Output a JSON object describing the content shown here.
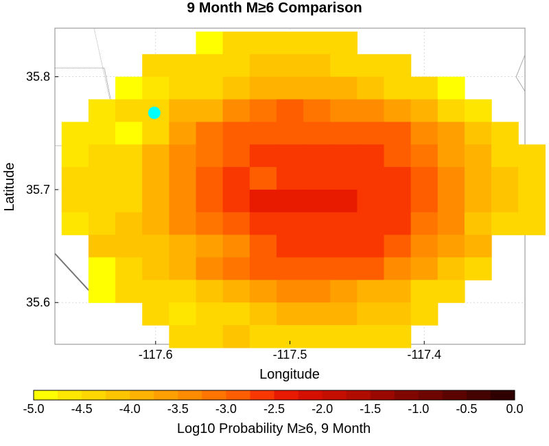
{
  "chart_data": {
    "type": "heatmap",
    "title": "9 Month M≥6 Comparison",
    "xlabel": "Longitude",
    "ylabel": "Latitude",
    "xlim": [
      -117.675,
      -117.325
    ],
    "ylim": [
      35.563,
      35.843
    ],
    "x_ticks": [
      {
        "value": -117.6,
        "label": "-117.6"
      },
      {
        "value": -117.5,
        "label": "-117.5"
      },
      {
        "value": -117.4,
        "label": "-117.4"
      }
    ],
    "y_ticks": [
      {
        "value": 35.6,
        "label": "35.6"
      },
      {
        "value": 35.7,
        "label": "35.7"
      },
      {
        "value": 35.8,
        "label": "35.8"
      }
    ],
    "grid": true,
    "cell_rows": [
      {
        "lat": 35.83,
        "lon_start": -117.57,
        "values": [
          -4.8,
          -4.5,
          -4.4,
          -4.4,
          -4.4,
          -4.5
        ]
      },
      {
        "lat": 35.81,
        "lon_start": -117.61,
        "values": [
          -4.5,
          -4.5,
          -4.3,
          -4.3,
          -4.1,
          -4.1,
          -4.1,
          -4.3,
          -4.4,
          -4.4
        ]
      },
      {
        "lat": 35.79,
        "lon_start": -117.63,
        "values": [
          -4.9,
          -4.6,
          -4.3,
          -4.3,
          -4.1,
          -3.9,
          -3.9,
          -3.9,
          -3.9,
          -4.1,
          -4.3,
          -4.4,
          -4.9
        ]
      },
      {
        "lat": 35.77,
        "lon_start": -117.65,
        "values": [
          -4.6,
          -4.4,
          -4.3,
          -4.0,
          -3.8,
          -3.5,
          -3.2,
          -3.0,
          -3.2,
          -3.4,
          -3.5,
          -3.7,
          -4.0,
          -4.3,
          -4.7
        ]
      },
      {
        "lat": 35.75,
        "lon_start": -117.67,
        "values": [
          -4.7,
          -4.6,
          -4.8,
          -4.3,
          -3.6,
          -3.2,
          -3.0,
          -2.8,
          -2.8,
          -2.8,
          -2.8,
          -2.9,
          -3.0,
          -3.3,
          -3.7,
          -4.2,
          -4.4
        ]
      },
      {
        "lat": 35.73,
        "lon_start": -117.67,
        "values": [
          -4.6,
          -4.5,
          -4.3,
          -3.8,
          -3.5,
          -3.1,
          -2.8,
          -2.6,
          -2.6,
          -2.6,
          -2.6,
          -2.7,
          -2.9,
          -3.1,
          -3.6,
          -4.0,
          -4.3,
          -4.5
        ]
      },
      {
        "lat": 35.71,
        "lon_start": -117.67,
        "values": [
          -4.4,
          -4.4,
          -4.3,
          -3.8,
          -3.3,
          -3.0,
          -2.7,
          -2.8,
          -2.6,
          -2.6,
          -2.6,
          -2.6,
          -2.7,
          -3.0,
          -3.4,
          -3.8,
          -4.2,
          -4.4
        ]
      },
      {
        "lat": 35.69,
        "lon_start": -117.67,
        "values": [
          -4.4,
          -4.4,
          -4.4,
          -3.8,
          -3.3,
          -3.0,
          -2.7,
          -2.5,
          -2.3,
          -2.3,
          -2.5,
          -2.6,
          -2.7,
          -3.0,
          -3.3,
          -3.8,
          -4.2,
          -4.3
        ]
      },
      {
        "lat": 35.67,
        "lon_start": -117.67,
        "values": [
          -4.7,
          -4.4,
          -4.2,
          -3.8,
          -3.4,
          -3.1,
          -2.9,
          -2.6,
          -2.6,
          -2.6,
          -2.6,
          -2.6,
          -2.7,
          -3.1,
          -3.5,
          -4.1,
          -4.3,
          -4.4
        ]
      },
      {
        "lat": 35.65,
        "lon_start": -117.65,
        "values": [
          -4.2,
          -4.2,
          -4.1,
          -4.0,
          -3.6,
          -3.3,
          -3.0,
          -2.7,
          -2.6,
          -2.6,
          -2.6,
          -2.9,
          -3.3,
          -3.6,
          -4.0
        ]
      },
      {
        "lat": 35.63,
        "lon_start": -117.65,
        "values": [
          -4.8,
          -4.4,
          -4.1,
          -3.8,
          -3.5,
          -3.2,
          -3.0,
          -2.9,
          -2.9,
          -2.9,
          -3.0,
          -3.3,
          -3.6,
          -4.2,
          -4.5
        ]
      },
      {
        "lat": 35.61,
        "lon_start": -117.65,
        "values": [
          -4.9,
          -4.4,
          -4.3,
          -4.3,
          -4.1,
          -3.8,
          -3.6,
          -3.4,
          -3.4,
          -3.6,
          -3.8,
          -4.0,
          -4.4,
          -4.3
        ]
      },
      {
        "lat": 35.59,
        "lon_start": -117.61,
        "values": [
          -4.4,
          -4.7,
          -4.3,
          -4.3,
          -4.2,
          -4.0,
          -3.8,
          -3.8,
          -4.1,
          -4.1,
          -4.3
        ]
      },
      {
        "lat": 35.57,
        "lon_start": -117.59,
        "values": [
          -4.4,
          -4.3,
          -4.1,
          -4.3,
          -4.5,
          -4.5,
          -4.5,
          -4.4,
          -4.5
        ]
      }
    ],
    "cell_size_deg": 0.02,
    "marker": {
      "lon": -117.601,
      "lat": 35.768,
      "color": "#00ffff"
    },
    "colorbar": {
      "label": "Log10 Probability M≥6, 9 Month",
      "min": -5.0,
      "max": 0.0,
      "step": 0.25,
      "tick_labels": [
        "-5.0",
        "-4.5",
        "-4.0",
        "-3.5",
        "-3.0",
        "-2.5",
        "-2.0",
        "-1.5",
        "-1.0",
        "-0.5",
        "0.0"
      ],
      "colors": [
        "#ffff00",
        "#ffe600",
        "#ffd700",
        "#ffc400",
        "#ffb300",
        "#ffa000",
        "#ff8c00",
        "#ff7500",
        "#ff5e00",
        "#f83800",
        "#e81a00",
        "#d61000",
        "#c40e00",
        "#b00c00",
        "#9a0800",
        "#820600",
        "#6e0500",
        "#5a0300",
        "#440200",
        "#2e0100"
      ]
    }
  }
}
